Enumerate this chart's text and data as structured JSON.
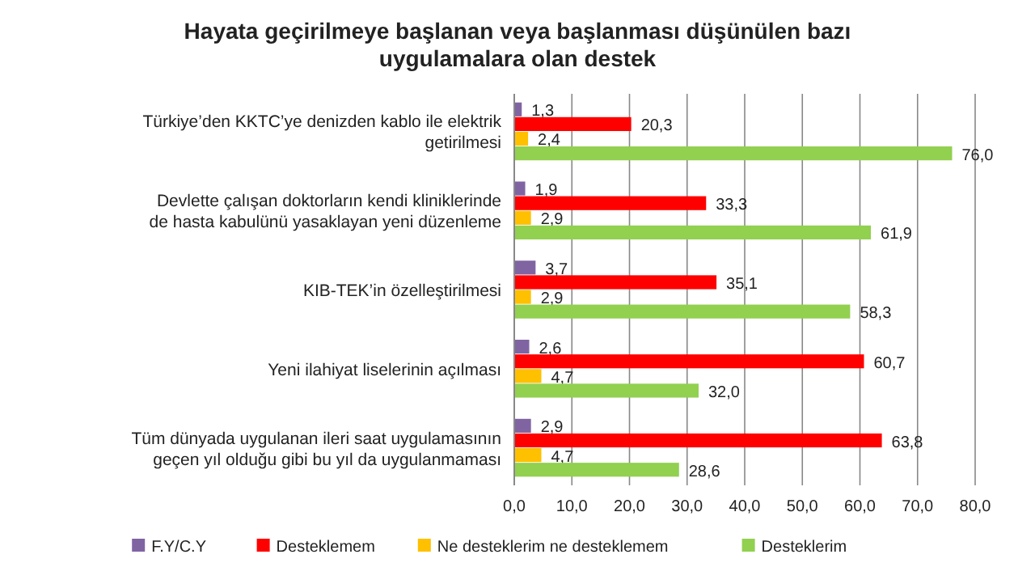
{
  "chart_data": {
    "type": "bar",
    "orientation": "horizontal",
    "title": "Hayata geçirilmeye başlanan veya başlanması düşünülen bazı uygulamalara olan destek",
    "categories": [
      "Türkiye’den KKTC’ye denizden kablo ile elektrik getirilmesi",
      "Devlette çalışan doktorların kendi kliniklerinde de hasta kabulünü yasaklayan yeni düzenleme",
      "KIB-TEK’in özelleştirilmesi",
      "Yeni ilahiyat liselerinin açılması",
      "Tüm dünyada uygulanan ileri saat uygulamasının geçen yıl olduğu gibi bu yıl da uygulanmaması"
    ],
    "series": [
      {
        "name": "F.Y/C.Y",
        "color": "#8064a2",
        "values": [
          1.3,
          1.9,
          3.7,
          2.6,
          2.9
        ],
        "value_labels": [
          "1,3",
          "1,9",
          "3,7",
          "2,6",
          "2,9"
        ]
      },
      {
        "name": "Desteklemem",
        "color": "#ff0000",
        "values": [
          20.3,
          33.3,
          35.1,
          60.7,
          63.8
        ],
        "value_labels": [
          "20,3",
          "33,3",
          "35,1",
          "60,7",
          "63,8"
        ]
      },
      {
        "name": "Ne desteklerim ne desteklemem",
        "color": "#ffc000",
        "values": [
          2.4,
          2.9,
          2.9,
          4.7,
          4.7
        ],
        "value_labels": [
          "2,4",
          "2,9",
          "2,9",
          "4,7",
          "4,7"
        ]
      },
      {
        "name": "Desteklerim",
        "color": "#92d050",
        "values": [
          76.0,
          61.9,
          58.3,
          32.0,
          28.6
        ],
        "value_labels": [
          "76,0",
          "61,9",
          "58,3",
          "32,0",
          "28,6"
        ]
      }
    ],
    "xlim": [
      0,
      80
    ],
    "xticks": [
      {
        "value": 0,
        "label": "0,0"
      },
      {
        "value": 10,
        "label": "10,0"
      },
      {
        "value": 20,
        "label": "20,0"
      },
      {
        "value": 30,
        "label": "30,0"
      },
      {
        "value": 40,
        "label": "40,0"
      },
      {
        "value": 50,
        "label": "50,0"
      },
      {
        "value": 60,
        "label": "60,0"
      },
      {
        "value": 70,
        "label": "70,0"
      },
      {
        "value": 80,
        "label": "80,0"
      }
    ],
    "grid": "x",
    "legend": "bottom"
  }
}
